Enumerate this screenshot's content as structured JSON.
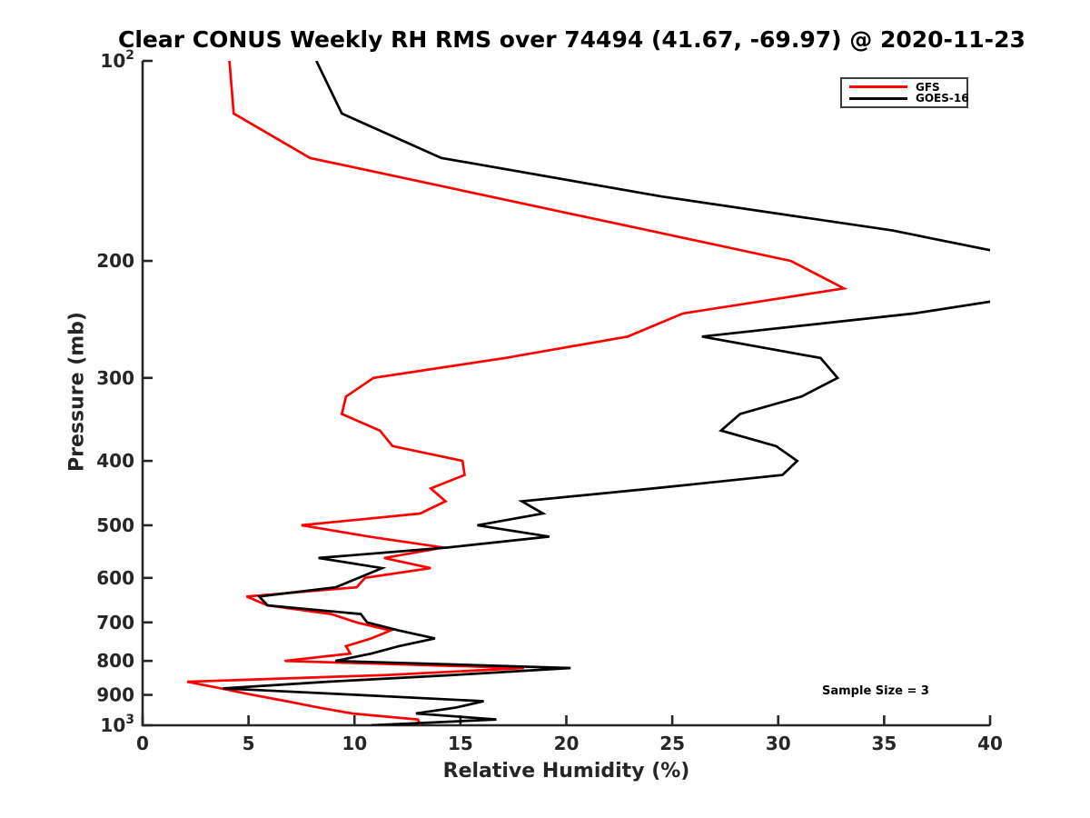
{
  "title": "Clear CONUS Weekly RH RMS over 74494 (41.67, -69.97) @ 2020-11-23",
  "axes": {
    "xlabel": "Relative Humidity (%)",
    "ylabel": "Pressure (mb)",
    "xlim": [
      0,
      40
    ],
    "ylim": [
      100,
      1000
    ],
    "y_scale": "log",
    "y_direction": "increasing-downward",
    "x_ticks": [
      0,
      5,
      10,
      15,
      20,
      25,
      30,
      35,
      40
    ],
    "y_ticks": [
      {
        "v": 100,
        "base": "10",
        "sup": "2"
      },
      {
        "v": 200,
        "label": "200"
      },
      {
        "v": 300,
        "label": "300"
      },
      {
        "v": 400,
        "label": "400"
      },
      {
        "v": 500,
        "label": "500"
      },
      {
        "v": 600,
        "label": "600"
      },
      {
        "v": 700,
        "label": "700"
      },
      {
        "v": 800,
        "label": "800"
      },
      {
        "v": 900,
        "label": "900"
      },
      {
        "v": 1000,
        "base": "10",
        "sup": "3"
      }
    ],
    "axis_color": "#262626"
  },
  "legend": {
    "items": [
      {
        "label": "GFS",
        "color": "#ff0000"
      },
      {
        "label": "GOES-16",
        "color": "#000000"
      }
    ]
  },
  "annotation": {
    "text": "Sample Size = 3"
  },
  "chart_data": {
    "type": "line",
    "title": "Clear CONUS Weekly RH RMS over 74494 (41.67, -69.97) @ 2020-11-23",
    "xlabel": "Relative Humidity (%)",
    "ylabel": "Pressure (mb)",
    "xlim": [
      0,
      40
    ],
    "ylim": [
      100,
      1000
    ],
    "y_scale": "log",
    "legend_position": "top-right",
    "grid": false,
    "pressure_mb": [
      100,
      120,
      140,
      160,
      180,
      200,
      220,
      240,
      260,
      280,
      300,
      320,
      340,
      360,
      380,
      400,
      420,
      440,
      460,
      480,
      500,
      520,
      540,
      560,
      580,
      600,
      620,
      640,
      660,
      680,
      700,
      720,
      740,
      760,
      780,
      800,
      820,
      840,
      860,
      880,
      900,
      920,
      940,
      960,
      980,
      1000
    ],
    "series": [
      {
        "name": "GFS",
        "color": "#ff0000",
        "rh_percent": [
          4.1,
          4.3,
          7.9,
          16.4,
          23.9,
          30.6,
          33.1,
          25.5,
          22.9,
          17.1,
          10.9,
          9.6,
          9.4,
          11.2,
          11.8,
          15.1,
          15.2,
          13.6,
          14.3,
          13.1,
          7.5,
          10.7,
          14.2,
          11.4,
          13.6,
          10.5,
          10.1,
          4.9,
          5.9,
          8.9,
          10.1,
          11.7,
          10.8,
          9.6,
          9.8,
          6.7,
          18.0,
          11.6,
          2.1,
          3.7,
          5.2,
          6.8,
          8.3,
          9.9,
          13.0,
          13.1
        ]
      },
      {
        "name": "GOES-16",
        "color": "#000000",
        "rh_percent": [
          8.2,
          9.4,
          14.1,
          24.5,
          35.4,
          42.5,
          44.0,
          36.4,
          26.4,
          32.0,
          32.8,
          31.1,
          28.2,
          27.3,
          29.9,
          30.9,
          30.2,
          24.1,
          17.9,
          18.9,
          15.8,
          19.2,
          14.4,
          8.3,
          11.3,
          10.2,
          9.1,
          5.5,
          5.9,
          10.3,
          10.6,
          12.1,
          13.8,
          12.1,
          10.8,
          9.1,
          20.2,
          14.7,
          8.7,
          3.8,
          10.2,
          16.1,
          14.8,
          12.9,
          16.7,
          10.8
        ]
      }
    ],
    "note": "GOES-16 RMS exceeds the 40% axis limit near 200-220 mb, so that curve is clipped at the right edge of the axes."
  }
}
